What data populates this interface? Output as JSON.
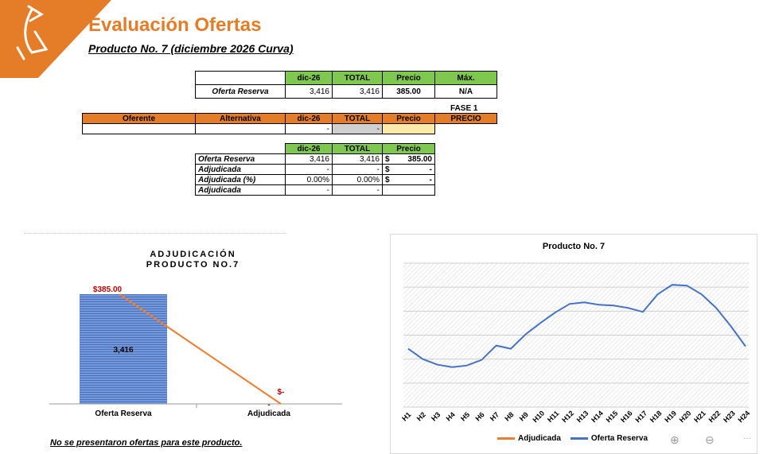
{
  "header": {
    "title": "Evaluación Ofertas",
    "subtitle": "Producto No. 7  (diciembre 2026 Curva)"
  },
  "table_reserva": {
    "headers": [
      "dic-26",
      "TOTAL",
      "Precio",
      "Máx."
    ],
    "row": {
      "label": "Oferta Reserva",
      "dic": "3,416",
      "total": "3,416",
      "precio": "385.00",
      "max": "N/A"
    }
  },
  "fase": "FASE 1",
  "table_ofertas": {
    "headers": [
      "Oferente",
      "Alternativa",
      "dic-26",
      "TOTAL",
      "Precio",
      "PRECIO"
    ],
    "row": {
      "oferente": "",
      "alternativa": "",
      "dic": "-",
      "total": "-",
      "precio": "",
      "precio2": ""
    }
  },
  "table_summary": {
    "headers": [
      "dic-26",
      "TOTAL",
      "Precio"
    ],
    "rows": [
      {
        "label": "Oferta Reserva",
        "dic": "3,416",
        "total": "3,416",
        "cur": "$",
        "precio": "385.00"
      },
      {
        "label": "Adjudicada",
        "dic": "-",
        "total": "-",
        "cur": "$",
        "precio": "-"
      },
      {
        "label": "Adjudicada (%)",
        "dic": "0.00%",
        "total": "0.00%",
        "cur": "$",
        "precio": "-"
      },
      {
        "label": "Adjudicada",
        "dic": "-",
        "total": "-",
        "cur": "",
        "precio": ""
      }
    ]
  },
  "bar_chart_title_line1": "ADJUDICACIÓN",
  "bar_chart_title_line2": "PRODUCTO NO.7",
  "note": "No se presentaron ofertas para este producto.",
  "line_chart_title": "Producto No. 7",
  "zoom_in_icon": "zoom-in-icon",
  "zoom_out_icon": "zoom-out-icon",
  "more_icon": "···",
  "chart_data": [
    {
      "type": "bar",
      "categories": [
        "Oferta Reserva",
        "Adjudicada"
      ],
      "values": [
        3416,
        0
      ],
      "bar_labels": [
        "3,416",
        "-"
      ],
      "price_labels": [
        "$385.00",
        "$-"
      ],
      "price_values": [
        385,
        0
      ],
      "colors": {
        "bar": "#4472c4",
        "price_line": "#ed7d31",
        "price_label": "#c00000"
      }
    },
    {
      "type": "line",
      "x": [
        "H1",
        "H2",
        "H3",
        "H4",
        "H5",
        "H6",
        "H7",
        "H8",
        "H9",
        "H10",
        "H11",
        "H12",
        "H13",
        "H14",
        "H15",
        "H16",
        "H17",
        "H18",
        "H19",
        "H20",
        "H21",
        "H22",
        "H23",
        "H24"
      ],
      "series": [
        {
          "name": "Adjudicada",
          "color": "#ed7d31",
          "values": [
            0,
            0,
            0,
            0,
            0,
            0,
            0,
            0,
            0,
            0,
            0,
            0,
            0,
            0,
            0,
            0,
            0,
            0,
            0,
            0,
            0,
            0,
            0,
            0
          ]
        },
        {
          "name": "Oferta Reserva",
          "color": "#4472c4",
          "values": [
            123,
            110,
            103,
            100,
            102,
            109,
            127,
            123,
            141,
            155,
            168,
            179,
            181,
            178,
            177,
            174,
            169,
            191,
            203,
            202,
            191,
            174,
            151,
            126
          ]
        }
      ],
      "ylim": [
        50,
        230
      ]
    }
  ]
}
